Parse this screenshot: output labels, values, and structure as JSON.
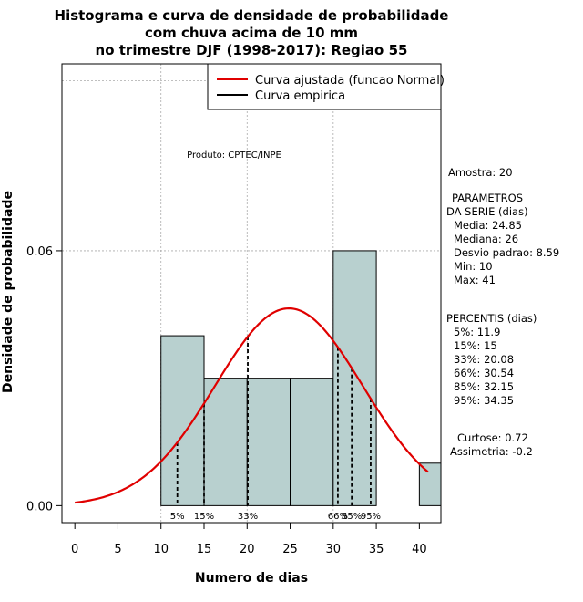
{
  "chart_data": {
    "type": "histogram",
    "title": [
      "Histograma e curva de densidade de probabilidade",
      "com chuva acima de 10 mm",
      "no trimestre DJF (1998-2017): Regiao 55"
    ],
    "xlabel": "Numero de dias",
    "ylabel": "Densidade de probabilidade",
    "xlim": [
      -1.5,
      42.5
    ],
    "ylim": [
      -0.004,
      0.104
    ],
    "x_ticks": [
      0,
      5,
      10,
      15,
      20,
      25,
      30,
      35,
      40
    ],
    "y_ticks": [
      0.0,
      0.06
    ],
    "y_tick_labels": [
      "0.00",
      "0.06"
    ],
    "gridlines_y": [
      0.06,
      0.1
    ],
    "gridlines_x": [
      10,
      20,
      30
    ],
    "bins": [
      {
        "from": 10,
        "to": 15,
        "density": 0.04
      },
      {
        "from": 15,
        "to": 20,
        "density": 0.03
      },
      {
        "from": 20,
        "to": 25,
        "density": 0.03
      },
      {
        "from": 25,
        "to": 30,
        "density": 0.03
      },
      {
        "from": 30,
        "to": 35,
        "density": 0.06
      },
      {
        "from": 35,
        "to": 40,
        "density": 0.0
      },
      {
        "from": 40,
        "to": 45,
        "density": 0.01
      }
    ],
    "normal_curve": {
      "mean": 24.85,
      "sd": 8.59,
      "from": 0,
      "to": 41,
      "color": "#e00000"
    },
    "percentile_lines": [
      {
        "label": "5%",
        "value": 11.9
      },
      {
        "label": "15%",
        "value": 15
      },
      {
        "label": "33%",
        "value": 20.08
      },
      {
        "label": "66%",
        "value": 30.54
      },
      {
        "label": "85%",
        "value": 32.15
      },
      {
        "label": "95%",
        "value": 34.35
      }
    ],
    "bar_color": "#b8d0cf",
    "legend": {
      "position": "top-right",
      "items": [
        {
          "label": "Curva ajustada (funcao Normal)",
          "color": "#e00000"
        },
        {
          "label": "Curva empirica",
          "color": "#000000"
        }
      ]
    },
    "annotation": "Produto: CPTEC/INPE",
    "stats": {
      "amostra": "Amostra: 20",
      "params_title_1": "PARAMETROS",
      "params_title_2": "DA SERIE (dias)",
      "media": "Media: 24.85",
      "mediana": "Mediana: 26",
      "desvio": "Desvio padrao: 8.59",
      "min": "Min: 10",
      "max": "Max: 41",
      "percentis_title": "PERCENTIS (dias)",
      "p5": "5%: 11.9",
      "p15": "15%: 15",
      "p33": "33%: 20.08",
      "p66": "66%: 30.54",
      "p85": "85%: 32.15",
      "p95": "95%: 34.35",
      "curtose": "Curtose: 0.72",
      "assimetria": "Assimetria: -0.2"
    }
  }
}
